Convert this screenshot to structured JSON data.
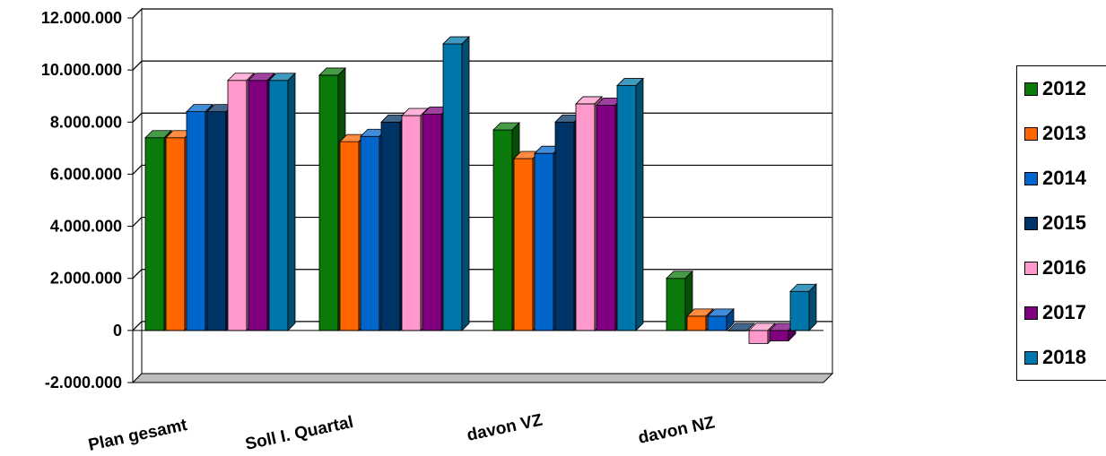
{
  "chart_data": {
    "type": "bar",
    "categories": [
      "Plan gesamt",
      "Soll I. Quartal",
      "davon VZ",
      "davon NZ"
    ],
    "series": [
      {
        "name": "2012",
        "color": "#0a7a0a",
        "values": [
          7400000,
          9800000,
          7700000,
          2000000
        ]
      },
      {
        "name": "2013",
        "color": "#ff6600",
        "values": [
          7400000,
          7250000,
          6600000,
          550000
        ]
      },
      {
        "name": "2014",
        "color": "#0066cc",
        "values": [
          8400000,
          7450000,
          6800000,
          550000
        ]
      },
      {
        "name": "2015",
        "color": "#003366",
        "values": [
          8400000,
          8000000,
          8000000,
          0
        ]
      },
      {
        "name": "2016",
        "color": "#ff99cc",
        "values": [
          9600000,
          8250000,
          8700000,
          -500000
        ]
      },
      {
        "name": "2017",
        "color": "#800080",
        "values": [
          9600000,
          8300000,
          8650000,
          -400000
        ]
      },
      {
        "name": "2018",
        "color": "#0077aa",
        "values": [
          9600000,
          11000000,
          9400000,
          1500000
        ]
      }
    ],
    "ylim": [
      -2000000,
      12000000
    ],
    "yticks": [
      12000000,
      10000000,
      8000000,
      6000000,
      4000000,
      2000000,
      0,
      -2000000
    ],
    "ytick_labels": [
      "12.000.000",
      "10.000.000",
      "8.000.000",
      "6.000.000",
      "4.000.000",
      "2.000.000",
      "0",
      "-2.000.000"
    ],
    "grid": true,
    "legend_position": "right",
    "title": "",
    "xlabel": "",
    "ylabel": ""
  }
}
